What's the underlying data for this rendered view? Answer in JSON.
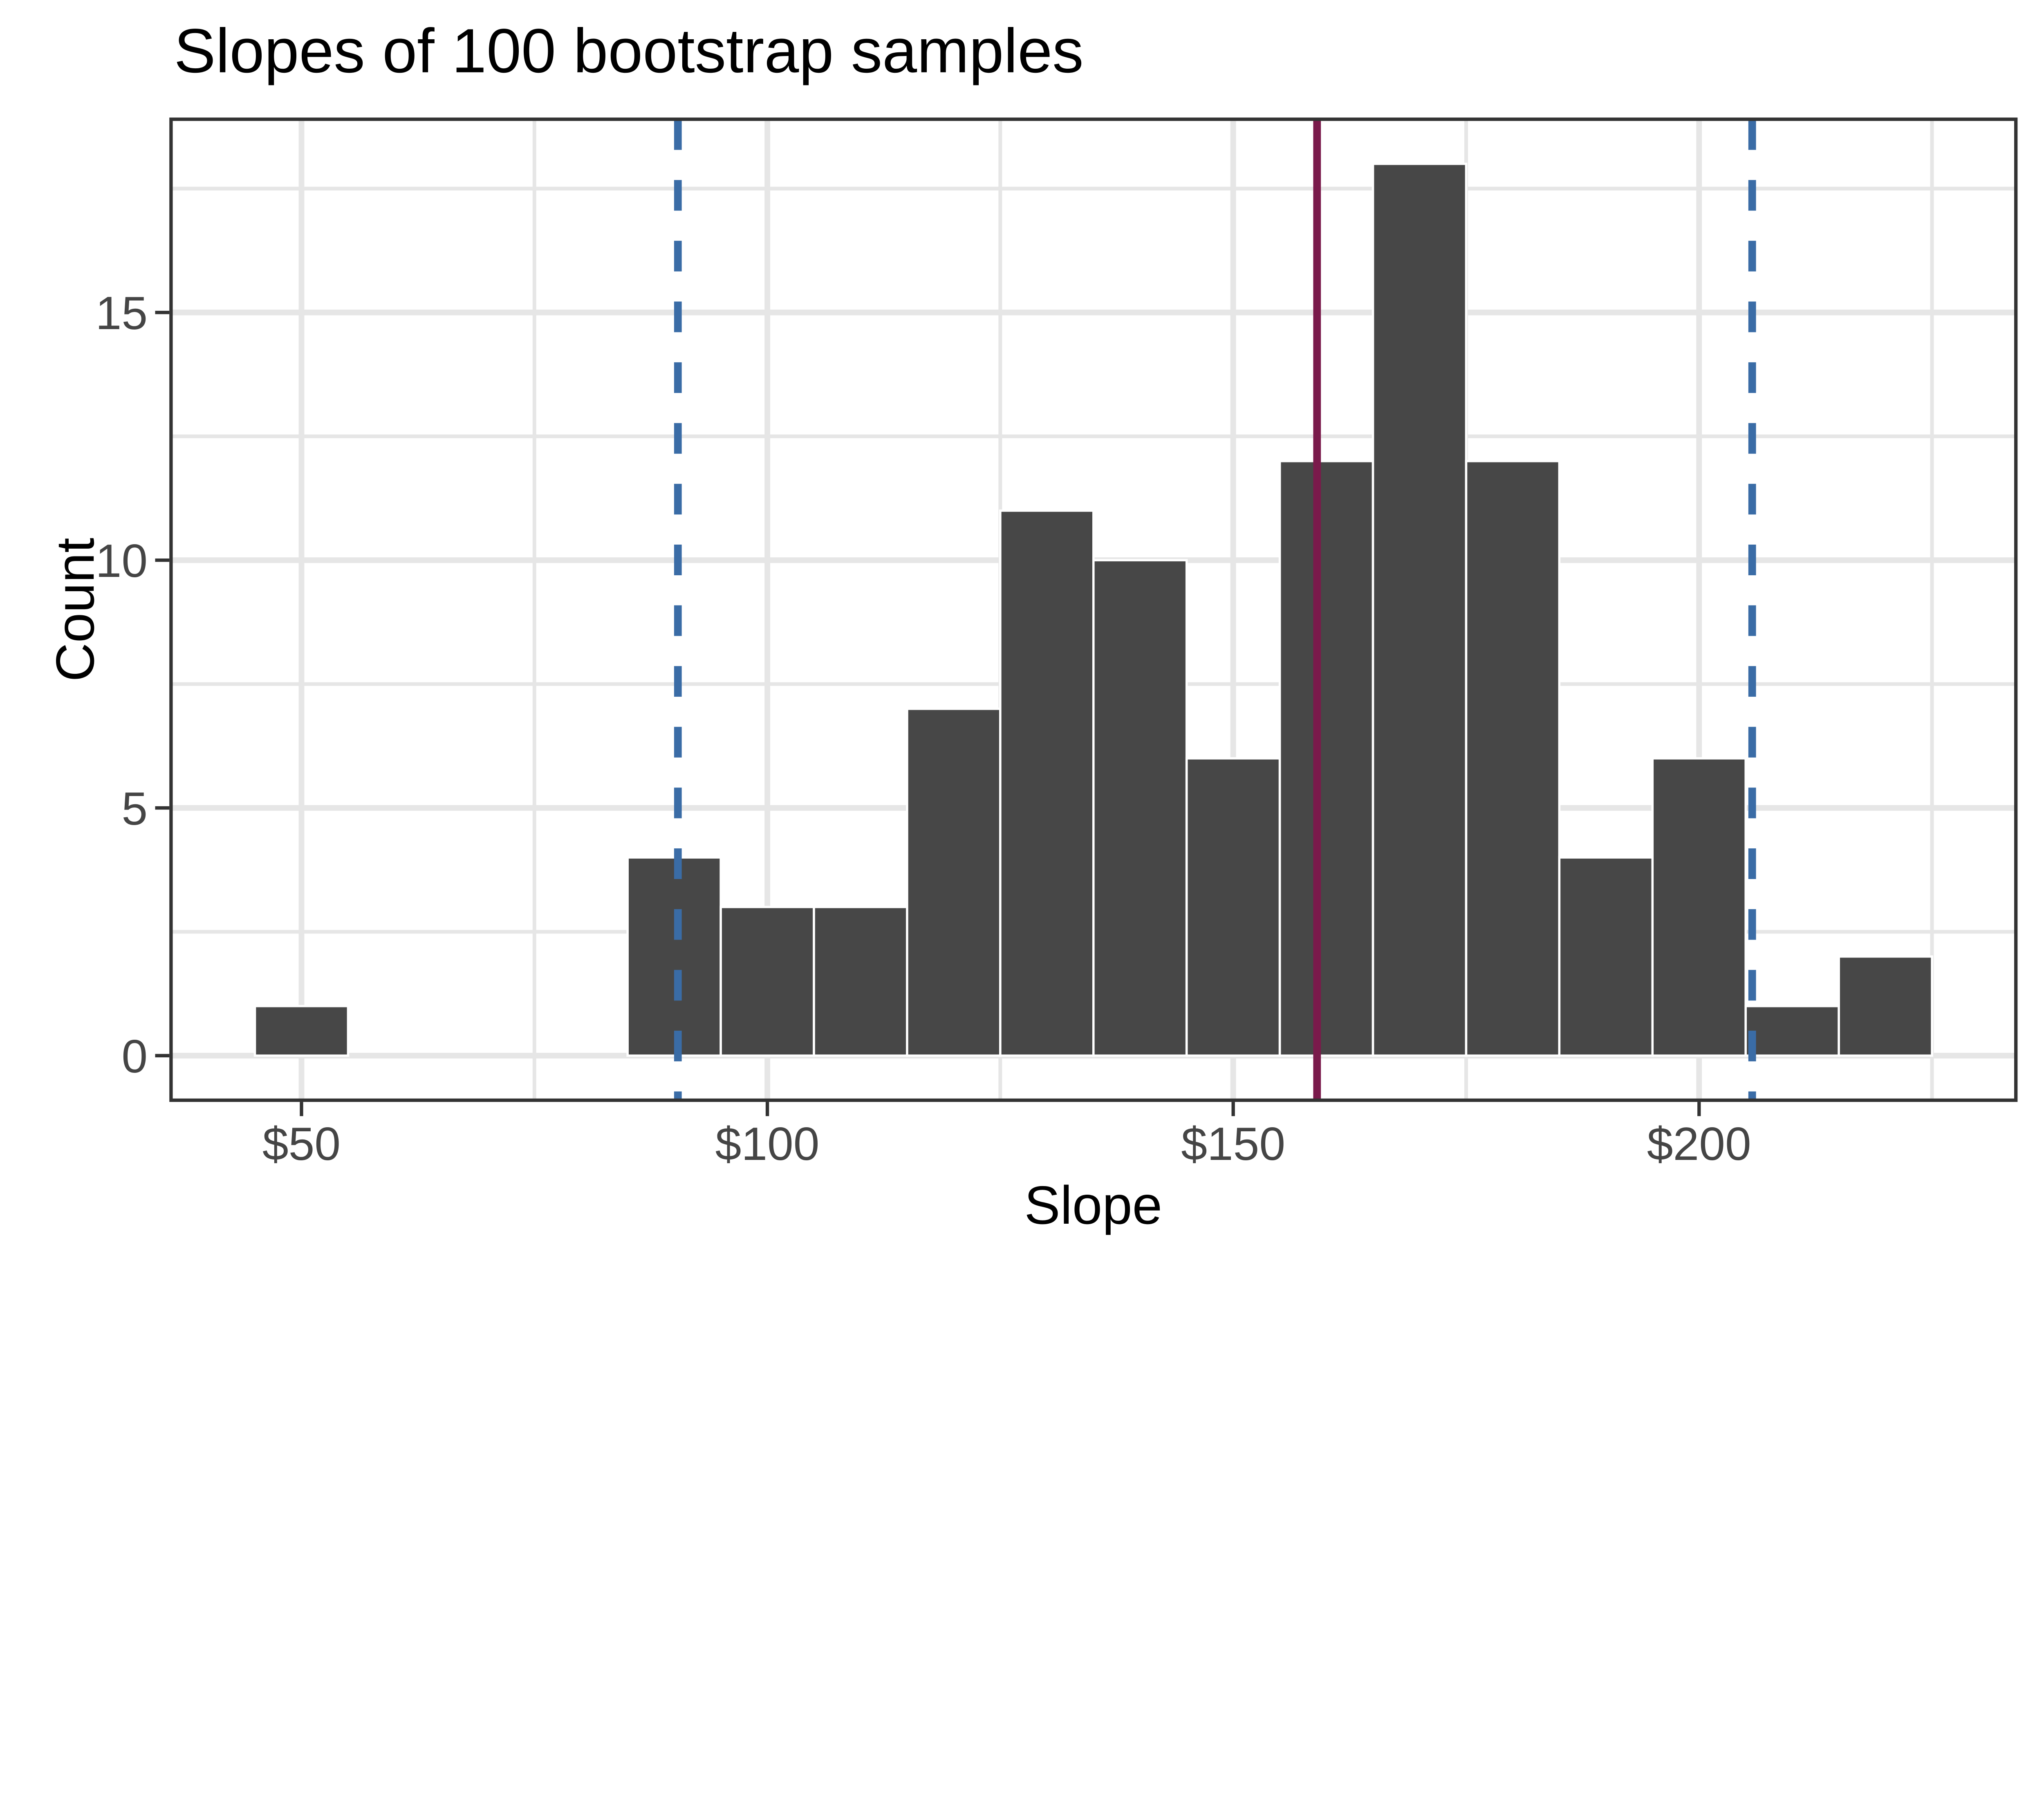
{
  "title": "Slopes of 100 bootstrap samples",
  "x_axis": {
    "label": "Slope",
    "tick_labels": [
      "$50",
      "$100",
      "$150",
      "$200"
    ],
    "tick_values": [
      50,
      100,
      150,
      200
    ]
  },
  "y_axis": {
    "label": "Count",
    "tick_labels": [
      "0",
      "5",
      "10",
      "15"
    ],
    "tick_values": [
      0,
      5,
      10,
      15
    ]
  },
  "chart_data": {
    "type": "bar",
    "subtype": "histogram",
    "title": "Slopes of 100 bootstrap samples",
    "xlabel": "Slope",
    "ylabel": "Count",
    "total_samples": 100,
    "bin_width": 10,
    "bin_centers": [
      50,
      90,
      100,
      110,
      120,
      130,
      140,
      150,
      160,
      170,
      180,
      190,
      200,
      210,
      220
    ],
    "counts": [
      1,
      4,
      3,
      3,
      7,
      11,
      10,
      6,
      12,
      18,
      12,
      4,
      6,
      1,
      2
    ],
    "xlim": [
      36,
      234
    ],
    "ylim": [
      -0.9,
      18.9
    ],
    "x_major_gridlines": [
      50,
      100,
      150,
      200
    ],
    "x_minor_gridlines": [
      75,
      125,
      175,
      225
    ],
    "y_major_gridlines": [
      0,
      5,
      10,
      15
    ],
    "y_minor_gridlines": [
      2.5,
      7.5,
      12.5,
      17.5
    ],
    "grid": true,
    "legend": false,
    "vlines": [
      {
        "name": "ci-lower-line",
        "x": 90.4,
        "style": "dashed",
        "color": "#3A6CA6"
      },
      {
        "name": "point-estimate-line",
        "x": 159.0,
        "style": "solid",
        "color": "#7A1A4B"
      },
      {
        "name": "ci-upper-line",
        "x": 205.7,
        "style": "dashed",
        "color": "#3A6CA6"
      }
    ]
  },
  "colors": {
    "bar_fill": "#474747",
    "bar_border": "#FFFFFF",
    "panel_border": "#333333",
    "gridline": "#E6E6E6",
    "axis_text": "#454545",
    "tick_mark": "#333333",
    "title_text": "#000000",
    "background": "#FFFFFF"
  }
}
